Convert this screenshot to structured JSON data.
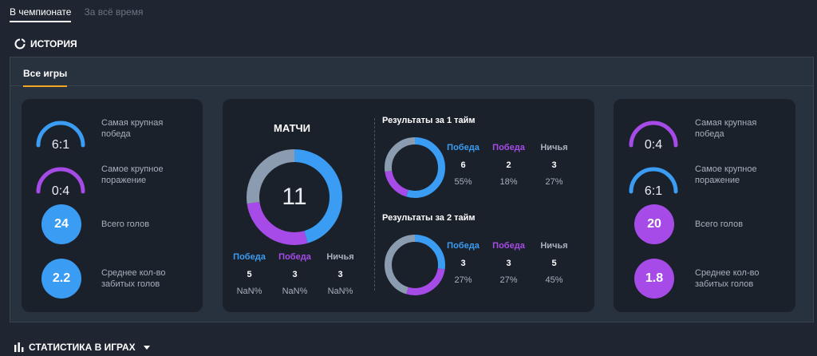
{
  "top_tabs": [
    "В чемпионате",
    "За всё время"
  ],
  "history_title": "ИСТОРИЯ",
  "panel_tab": "Все игры",
  "colors": {
    "blue": "#3a9cf3",
    "purple": "#a64be8",
    "grey": "#8c9cb0"
  },
  "left": {
    "biggest_win": {
      "label": "Самая крупная победа",
      "value": "6:1"
    },
    "biggest_loss": {
      "label": "Самое крупное поражение",
      "value": "0:4"
    },
    "total_goals": {
      "label": "Всего голов",
      "value": "24"
    },
    "avg_goals": {
      "label": "Среднее кол-во забитых голов",
      "value": "2.2"
    }
  },
  "right": {
    "biggest_win": {
      "label": "Самая крупная победа",
      "value": "0:4"
    },
    "biggest_loss": {
      "label": "Самое крупное поражение",
      "value": "6:1"
    },
    "total_goals": {
      "label": "Всего голов",
      "value": "20"
    },
    "avg_goals": {
      "label": "Среднее кол-во забитых голов",
      "value": "1.8"
    }
  },
  "matches": {
    "title": "МАТЧИ",
    "total": "11",
    "labels": {
      "win1": "Победа",
      "win2": "Победа",
      "draw": "Ничья"
    },
    "counts": {
      "win1": 5,
      "win2": 3,
      "draw": 3
    },
    "pcts": {
      "win1": "NaN%",
      "win2": "NaN%",
      "draw": "NaN%"
    }
  },
  "half1": {
    "title": "Результаты за 1 тайм",
    "labels": {
      "win1": "Победа",
      "win2": "Победа",
      "draw": "Ничья"
    },
    "counts": {
      "win1": 6,
      "win2": 2,
      "draw": 3
    },
    "pcts": {
      "win1": "55%",
      "win2": "18%",
      "draw": "27%"
    }
  },
  "half2": {
    "title": "Результаты за 2 тайм",
    "labels": {
      "win1": "Победа",
      "win2": "Победа",
      "draw": "Ничья"
    },
    "counts": {
      "win1": 3,
      "win2": 3,
      "draw": 5
    },
    "pcts": {
      "win1": "27%",
      "win2": "27%",
      "draw": "45%"
    }
  },
  "footer_title": "СТАТИСТИКА В ИГРАХ"
}
